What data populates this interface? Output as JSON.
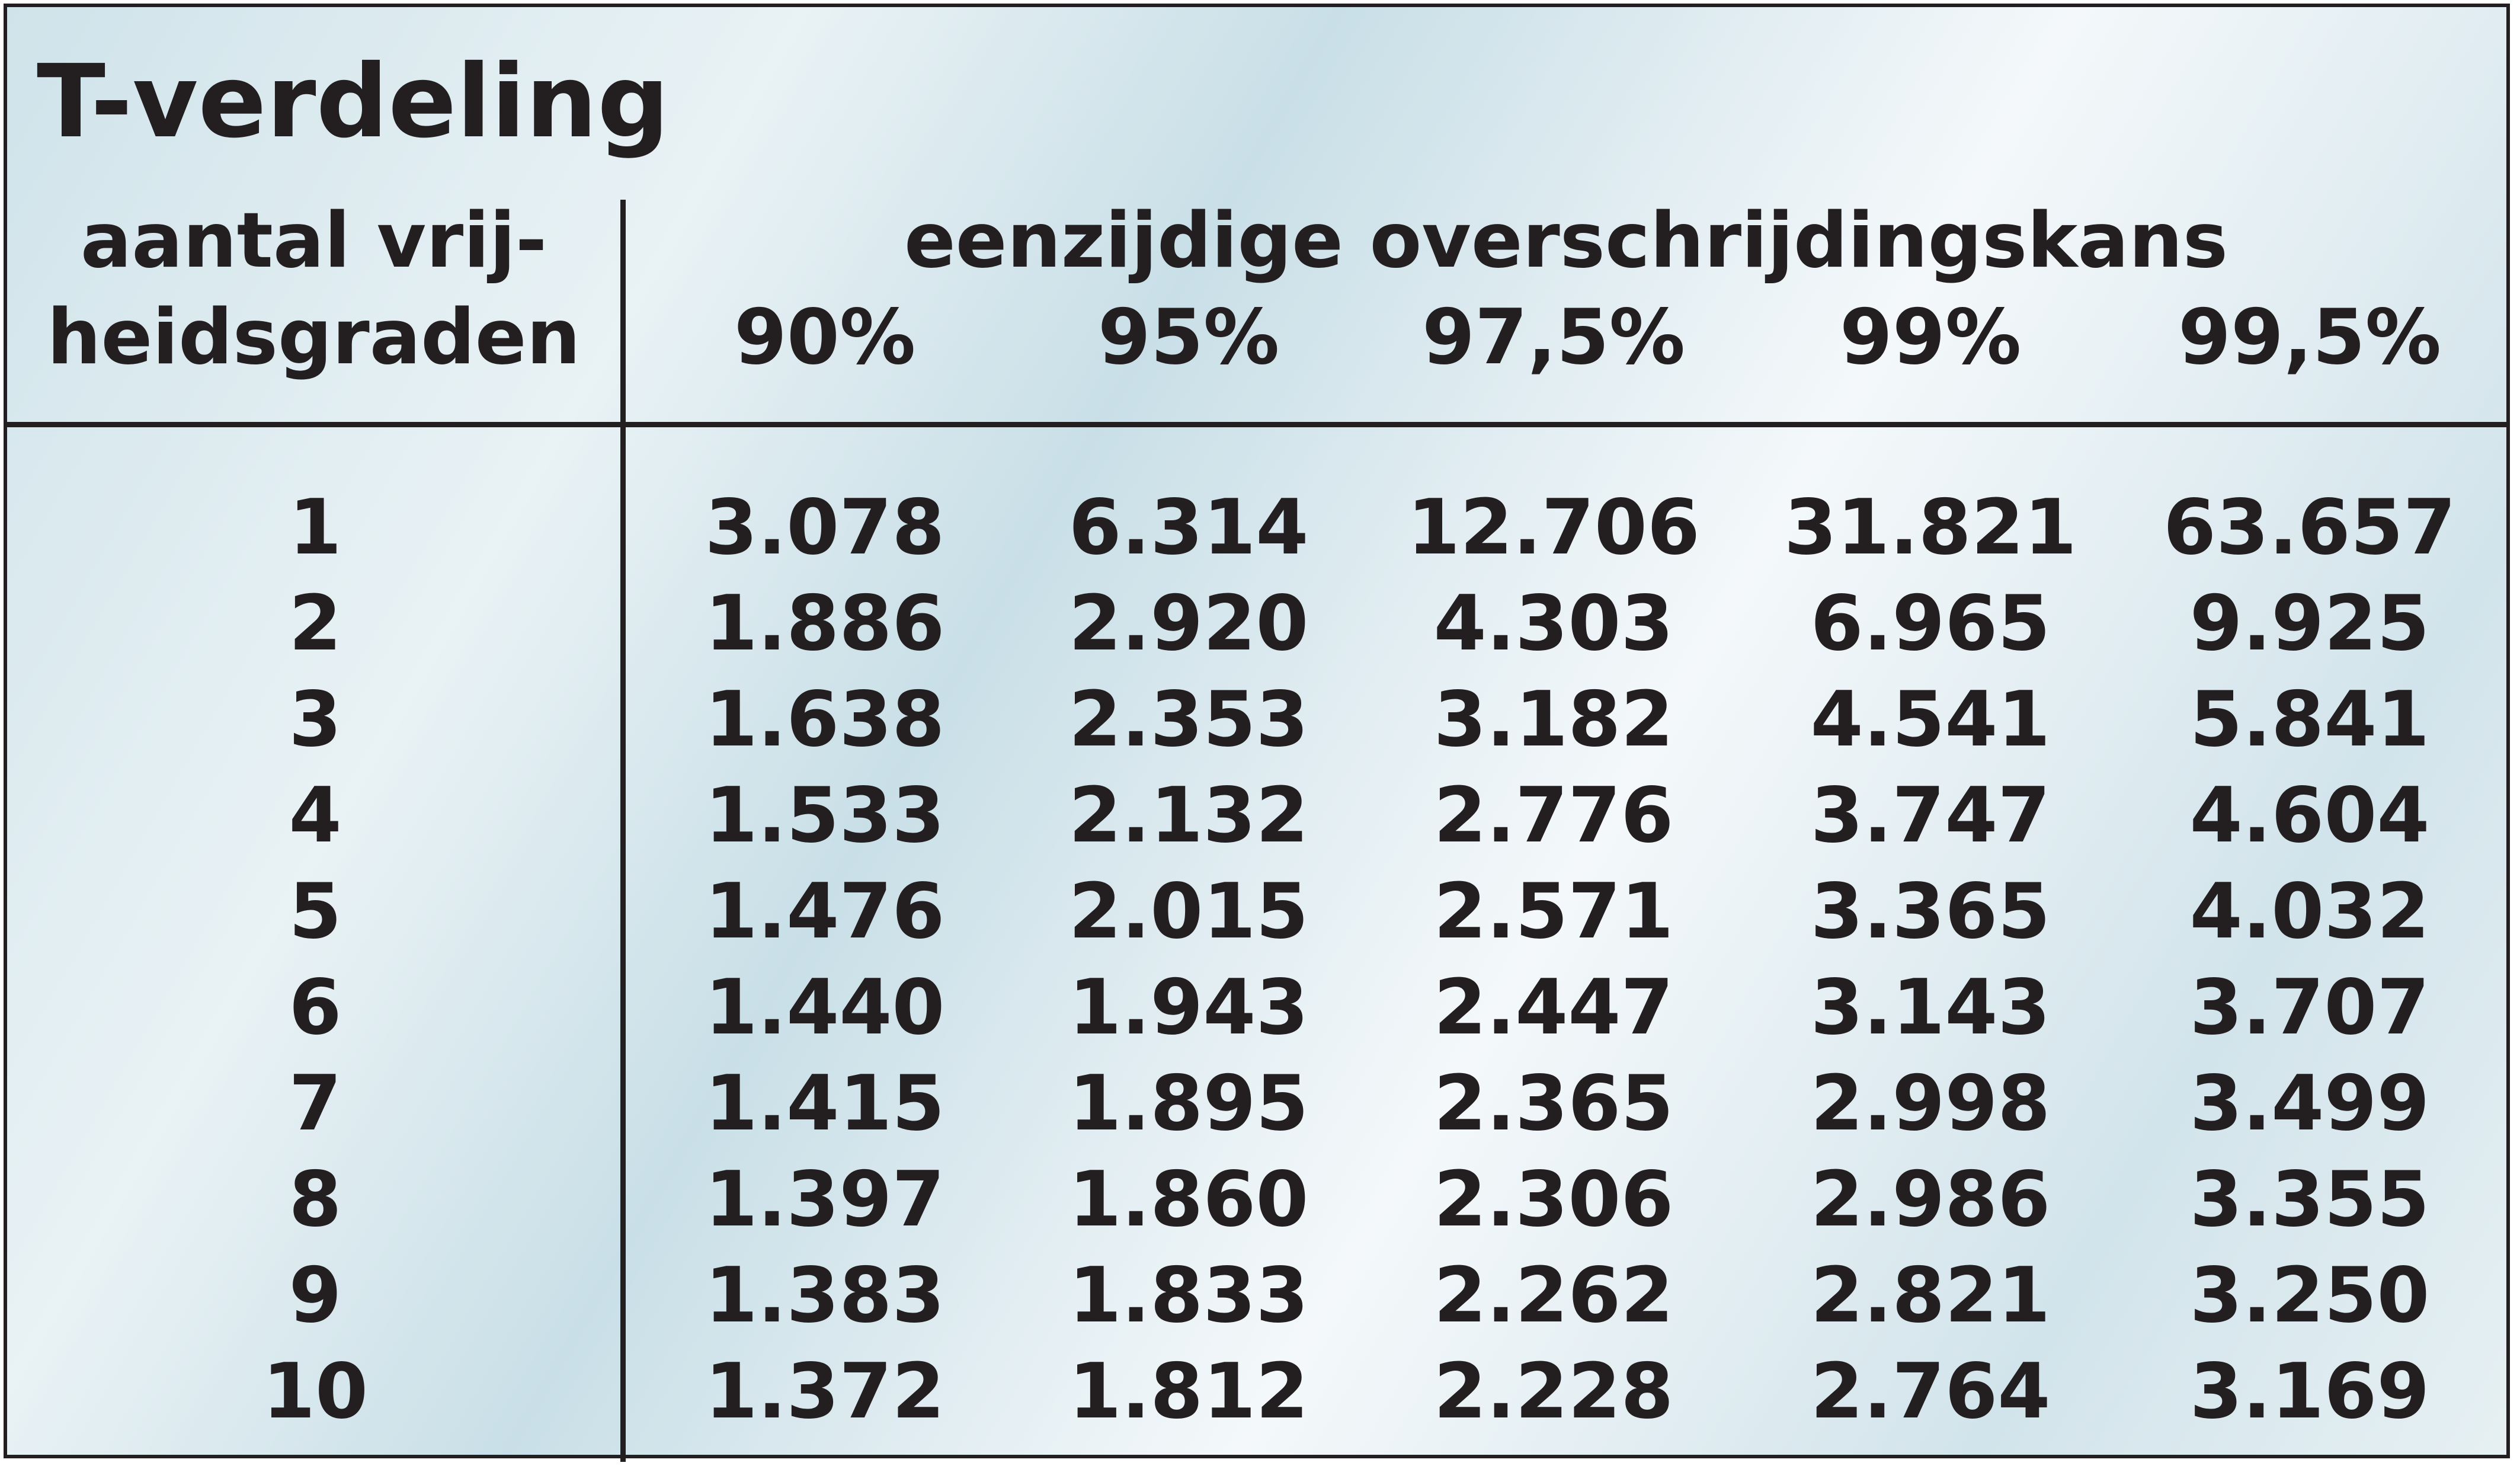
{
  "title": "T-verdeling",
  "header": {
    "df_line1": "aantal vrij-",
    "df_line2": "heidsgraden",
    "group_label": "eenzijdige overschrijdingskans",
    "percentages": [
      "90%",
      "95%",
      "97,5%",
      "99%",
      "99,5%"
    ]
  },
  "rows": [
    {
      "df": "1",
      "values": [
        "3.078",
        "6.314",
        "12.706",
        "31.821",
        "63.657"
      ]
    },
    {
      "df": "2",
      "values": [
        "1.886",
        "2.920",
        "4.303",
        "6.965",
        "9.925"
      ]
    },
    {
      "df": "3",
      "values": [
        "1.638",
        "2.353",
        "3.182",
        "4.541",
        "5.841"
      ]
    },
    {
      "df": "4",
      "values": [
        "1.533",
        "2.132",
        "2.776",
        "3.747",
        "4.604"
      ]
    },
    {
      "df": "5",
      "values": [
        "1.476",
        "2.015",
        "2.571",
        "3.365",
        "4.032"
      ]
    },
    {
      "df": "6",
      "values": [
        "1.440",
        "1.943",
        "2.447",
        "3.143",
        "3.707"
      ]
    },
    {
      "df": "7",
      "values": [
        "1.415",
        "1.895",
        "2.365",
        "2.998",
        "3.499"
      ]
    },
    {
      "df": "8",
      "values": [
        "1.397",
        "1.860",
        "2.306",
        "2.986",
        "3.355"
      ]
    },
    {
      "df": "9",
      "values": [
        "1.383",
        "1.833",
        "2.262",
        "2.821",
        "3.250"
      ]
    },
    {
      "df": "10",
      "values": [
        "1.372",
        "1.812",
        "2.228",
        "2.764",
        "3.169"
      ]
    }
  ],
  "colors": {
    "border": "#231f20",
    "text": "#231f20",
    "background_tint": "#cfe3ea"
  }
}
